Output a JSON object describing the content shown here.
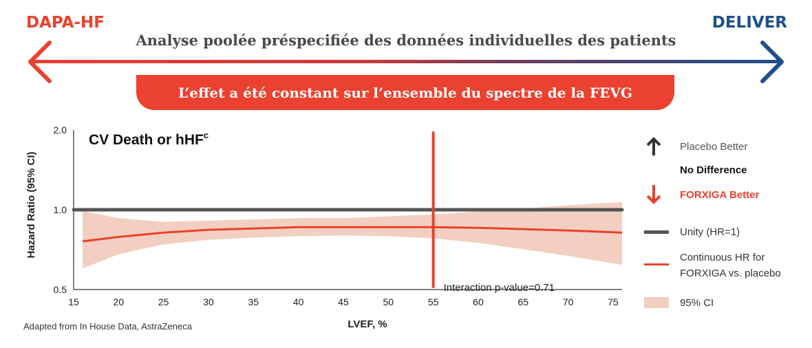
{
  "header": {
    "left_label": "DAPA-HF",
    "right_label": "DELIVER",
    "subtitle": "Analyse poolée préspecifiée des données individuelles des patients",
    "banner": "L’effet a été constant sur l’ensemble du spectre de la FEVG"
  },
  "colors": {
    "dapa": "#e9412c",
    "deliver": "#1d4f8a",
    "unity": "#555555",
    "curve": "#e9412c",
    "ci": "#f2cfc1"
  },
  "legend": {
    "placebo_better": "Placebo Better",
    "no_difference": "No Difference",
    "forxiga_better": "FORXIGA Better",
    "unity": "Unity (HR=1)",
    "hr_line1": "Continuous HR for",
    "hr_line2": "FORXIGA vs. placebo",
    "ci": "95% CI"
  },
  "footer": {
    "credit": "Adapted from In House Data, AstraZeneca"
  },
  "chart_data": {
    "type": "line",
    "title": "CV Death or hHF",
    "title_superscript": "c",
    "xlabel": "LVEF, %",
    "ylabel": "Hazard Ratio (95% CI)",
    "xlim": [
      15,
      76
    ],
    "ylim": [
      0.5,
      2.0
    ],
    "x_ticks": [
      15,
      20,
      25,
      30,
      35,
      40,
      45,
      50,
      55,
      60,
      65,
      70,
      75
    ],
    "y_ticks": [
      {
        "value": 0.5,
        "label": "0.5"
      },
      {
        "value": 1.0,
        "label": "1.0"
      },
      {
        "value": 2.0,
        "label": "2.0"
      }
    ],
    "unity": 1.0,
    "reference_x": 55,
    "annotation": "Interaction p-value=0.71",
    "series": [
      {
        "name": "Continuous HR for FORXIGA vs. placebo",
        "x": [
          16,
          20,
          25,
          30,
          35,
          40,
          45,
          50,
          55,
          60,
          65,
          70,
          76
        ],
        "y": [
          0.76,
          0.79,
          0.82,
          0.84,
          0.85,
          0.86,
          0.86,
          0.86,
          0.86,
          0.855,
          0.845,
          0.835,
          0.82
        ],
        "ci_lower": [
          0.6,
          0.68,
          0.74,
          0.77,
          0.785,
          0.795,
          0.8,
          0.795,
          0.78,
          0.75,
          0.71,
          0.67,
          0.62
        ],
        "ci_upper": [
          0.99,
          0.93,
          0.9,
          0.91,
          0.92,
          0.93,
          0.93,
          0.945,
          0.96,
          0.985,
          1.01,
          1.04,
          1.07
        ]
      }
    ]
  }
}
